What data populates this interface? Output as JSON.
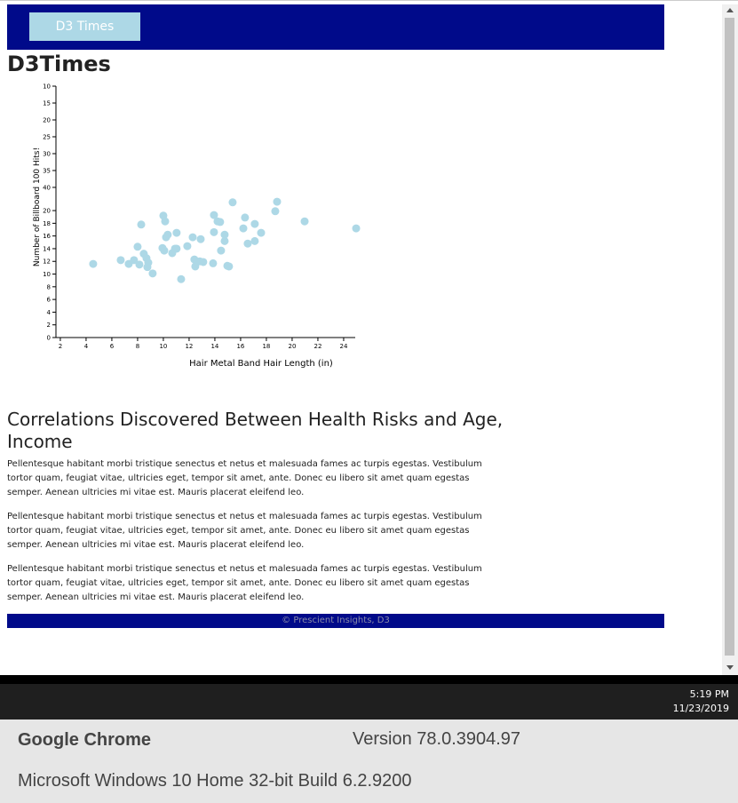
{
  "header": {
    "button": "D3 Times"
  },
  "page_title": "D3Times",
  "chart_data": {
    "type": "scatter",
    "xlabel": "Hair Metal Band Hair Length (in)",
    "ylabel": "Number of Billboard 100 Hits!",
    "color": "#add8e6",
    "x": [
      4.55,
      6.69,
      7.31,
      7.72,
      8.14,
      8.0,
      8.28,
      8.48,
      8.69,
      8.76,
      8.83,
      9.17,
      10.0,
      10.14,
      9.93,
      10.07,
      10.21,
      10.34,
      10.69,
      10.9,
      11.03,
      11.03,
      11.38,
      11.86,
      12.28,
      12.41,
      12.48,
      12.9,
      12.83,
      13.1,
      13.86,
      13.93,
      13.93,
      14.21,
      14.41,
      14.48,
      14.76,
      14.76,
      14.97,
      15.1,
      15.38,
      16.21,
      16.34,
      16.55,
      17.1,
      17.1,
      17.59,
      18.69,
      18.83,
      20.97,
      24.97
    ],
    "values": [
      11.6,
      12.2,
      11.6,
      12.2,
      11.5,
      14.3,
      17.8,
      13.2,
      12.5,
      11.1,
      11.8,
      10.1,
      19.2,
      18.3,
      14.1,
      13.7,
      15.8,
      16.2,
      13.3,
      14.0,
      16.5,
      14.0,
      9.2,
      14.4,
      15.8,
      12.3,
      11.2,
      15.5,
      12.0,
      11.9,
      11.7,
      19.3,
      16.6,
      18.3,
      18.2,
      13.7,
      16.2,
      15.2,
      11.3,
      11.2,
      21.3,
      17.2,
      18.9,
      14.8,
      17.9,
      15.2,
      16.5,
      19.9,
      21.4,
      18.3,
      17.2
    ],
    "xlim": [
      1.66,
      24.9
    ],
    "xticks": [
      2,
      4,
      6,
      8,
      10,
      12,
      14,
      16,
      18,
      20,
      22,
      24
    ],
    "ylim": [
      0,
      39.6
    ],
    "yticks": [
      0,
      2,
      4,
      6,
      8,
      10,
      12,
      14,
      16,
      18,
      20
    ],
    "y2lim": [
      84.5,
      10
    ],
    "y2ticks": [
      10,
      15,
      20,
      25,
      30,
      35,
      40
    ]
  },
  "article": {
    "title": "Correlations Discovered Between Health Risks and Age, Income",
    "paragraphs": [
      "Pellentesque habitant morbi tristique senectus et netus et malesuada fames ac turpis egestas. Vestibulum tortor quam, feugiat vitae, ultricies eget, tempor sit amet, ante. Donec eu libero sit amet quam egestas semper. Aenean ultricies mi vitae est. Mauris placerat eleifend leo.",
      "Pellentesque habitant morbi tristique senectus et netus et malesuada fames ac turpis egestas. Vestibulum tortor quam, feugiat vitae, ultricies eget, tempor sit amet, ante. Donec eu libero sit amet quam egestas semper. Aenean ultricies mi vitae est. Mauris placerat eleifend leo.",
      "Pellentesque habitant morbi tristique senectus et netus et malesuada fames ac turpis egestas. Vestibulum tortor quam, feugiat vitae, ultricies eget, tempor sit amet, ante. Donec eu libero sit amet quam egestas semper. Aenean ultricies mi vitae est. Mauris placerat eleifend leo."
    ]
  },
  "footer": "© Prescient Insights, D3",
  "taskbar": {
    "time": "5:19 PM",
    "date": "11/23/2019"
  },
  "info": {
    "browser": "Google Chrome",
    "version": "Version 78.0.3904.97",
    "os": "Microsoft Windows 10 Home 32-bit Build 6.2.9200"
  }
}
